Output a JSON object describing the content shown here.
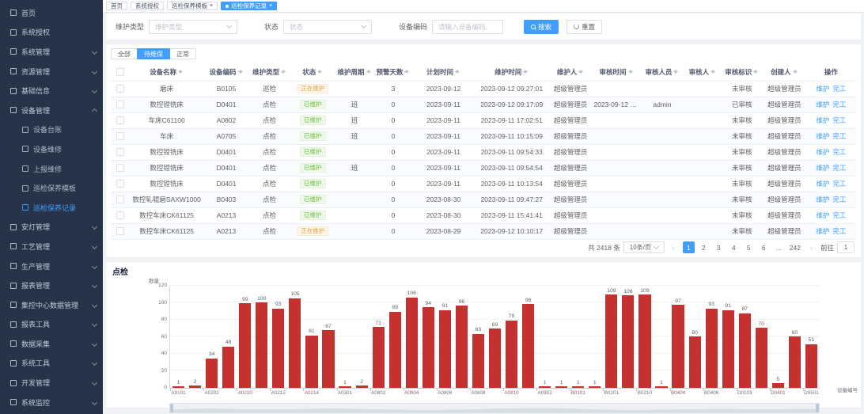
{
  "colors": {
    "accent": "#409eff",
    "bar_red": "#c4312e",
    "badge_working": "#e6a23c",
    "badge_done": "#67c23a",
    "sidebar_bg": "#273349"
  },
  "sidebar": {
    "items": [
      {
        "key": "home",
        "label": "首页",
        "icon": "home-icon"
      },
      {
        "key": "system-auth",
        "label": "系统授权",
        "icon": "authorization-icon"
      },
      {
        "key": "system-mgmt",
        "label": "系统管理",
        "icon": "system-settings-icon",
        "chevron": "down"
      },
      {
        "key": "resource-mgmt",
        "label": "资源管理",
        "icon": "resource-icon",
        "chevron": "down"
      },
      {
        "key": "base-info",
        "label": "基础信息",
        "icon": "base-info-icon",
        "chevron": "down"
      },
      {
        "key": "equipment-mgmt",
        "label": "设备管理",
        "icon": "equipment-icon",
        "chevron": "up"
      },
      {
        "key": "equipment-ledger",
        "label": "设备台账",
        "icon": "ledger-icon",
        "sub": true
      },
      {
        "key": "equipment-repair",
        "label": "设备维修",
        "icon": "repair-icon",
        "sub": true
      },
      {
        "key": "report-repair",
        "label": "上报维修",
        "icon": "report-repair-icon",
        "sub": true
      },
      {
        "key": "inspection-template",
        "label": "巡检保养模板",
        "icon": "template-icon",
        "sub": true
      },
      {
        "key": "inspection-record",
        "label": "巡检保养记录",
        "icon": "record-icon",
        "sub": true,
        "active": true
      },
      {
        "key": "andon-mgmt",
        "label": "安灯管理",
        "icon": "andon-icon",
        "chevron": "down"
      },
      {
        "key": "process-mgmt",
        "label": "工艺管理",
        "icon": "process-icon",
        "chevron": "down"
      },
      {
        "key": "production-mgmt",
        "label": "生产管理",
        "icon": "production-icon",
        "chevron": "down"
      },
      {
        "key": "report-mgmt",
        "label": "报表管理",
        "icon": "report-icon",
        "chevron": "down"
      },
      {
        "key": "central-data-mgmt",
        "label": "集控中心数据管理",
        "icon": "datacenter-icon",
        "chevron": "down"
      },
      {
        "key": "report-tool",
        "label": "报表工具",
        "icon": "report-tool-icon",
        "chevron": "down"
      },
      {
        "key": "data-collect",
        "label": "数据采集",
        "icon": "data-collect-icon",
        "chevron": "down"
      },
      {
        "key": "system-tool",
        "label": "系统工具",
        "icon": "system-tool-icon",
        "chevron": "down"
      },
      {
        "key": "dev-mgmt",
        "label": "开发管理",
        "icon": "dev-icon",
        "chevron": "down"
      },
      {
        "key": "system-monitor",
        "label": "系统监控",
        "icon": "monitor-icon",
        "chevron": "down"
      }
    ]
  },
  "tagbar": {
    "tabs": [
      {
        "key": "home",
        "label": "首页"
      },
      {
        "key": "system-auth",
        "label": "系统授权"
      },
      {
        "key": "inspection-template",
        "label": "巡检保养模板",
        "closable": true
      },
      {
        "key": "inspection-record",
        "label": "巡检保养记录",
        "closable": true,
        "active": true
      }
    ]
  },
  "filters": {
    "mtype_label": "维护类型",
    "mtype_placeholder": "维护类型",
    "status_label": "状态",
    "status_placeholder": "状态",
    "code_label": "设备编码",
    "code_placeholder": "请输入设备编码",
    "search_label": "搜索",
    "reset_label": "重置"
  },
  "view_tabs": [
    {
      "key": "all",
      "label": "全部"
    },
    {
      "key": "pending",
      "label": "待维保",
      "active": true
    },
    {
      "key": "normal",
      "label": "正常"
    }
  ],
  "table": {
    "columns": [
      {
        "label": "设备名称",
        "sortable": true
      },
      {
        "label": "设备编码",
        "sortable": true
      },
      {
        "label": "维护类型",
        "sortable": true
      },
      {
        "label": "状态",
        "sortable": true
      },
      {
        "label": "维护周期",
        "sortable": true
      },
      {
        "label": "预警天数",
        "sortable": true
      },
      {
        "label": "计划时间",
        "sortable": true
      },
      {
        "label": "维护时间",
        "sortable": true
      },
      {
        "label": "维护人",
        "sortable": true
      },
      {
        "label": "审核时间",
        "sortable": true
      },
      {
        "label": "审核人员",
        "sortable": true
      },
      {
        "label": "审核人",
        "sortable": true
      },
      {
        "label": "审核标识",
        "sortable": true
      },
      {
        "label": "创建人",
        "sortable": true
      },
      {
        "label": "操作",
        "sortable": false
      }
    ],
    "op_labels": [
      "维护",
      "完工"
    ],
    "rows": [
      {
        "name": "磨床",
        "code": "B0105",
        "mtype": "巡检",
        "status": "正在维护",
        "status_kind": "working",
        "cycle": "",
        "warn": "3",
        "plan": "2023-09-12",
        "mtime": "2023-09-12 09:27:01",
        "person": "超级管理员",
        "atime": "",
        "astaff": "",
        "aperson": "",
        "aflag": "未审核",
        "creator": "超级管理员"
      },
      {
        "name": "数控镗铣床",
        "code": "D0401",
        "mtype": "点检",
        "status": "已维护",
        "status_kind": "done",
        "cycle": "班",
        "warn": "0",
        "plan": "2023-09-11",
        "mtime": "2023-09-12 09:17:09",
        "person": "超级管理员",
        "atime": "2023-09-12 0...",
        "astaff": "admin",
        "aperson": "",
        "aflag": "已审核",
        "creator": "超级管理员"
      },
      {
        "name": "车床C61100",
        "code": "A0802",
        "mtype": "点检",
        "status": "已维护",
        "status_kind": "done",
        "cycle": "班",
        "warn": "0",
        "plan": "2023-09-11",
        "mtime": "2023-09-11 17:02:51",
        "person": "超级管理员",
        "atime": "",
        "astaff": "",
        "aperson": "",
        "aflag": "未审核",
        "creator": "超级管理员"
      },
      {
        "name": "车床",
        "code": "A0705",
        "mtype": "点检",
        "status": "已维护",
        "status_kind": "done",
        "cycle": "班",
        "warn": "0",
        "plan": "2023-09-11",
        "mtime": "2023-09-11 10:15:09",
        "person": "超级管理员",
        "atime": "",
        "astaff": "",
        "aperson": "",
        "aflag": "未审核",
        "creator": "超级管理员"
      },
      {
        "name": "数控镗铣床",
        "code": "D0401",
        "mtype": "点检",
        "status": "已维护",
        "status_kind": "done",
        "cycle": "",
        "warn": "0",
        "plan": "2023-09-11",
        "mtime": "2023-09-11 09:54:33",
        "person": "超级管理员",
        "atime": "",
        "astaff": "",
        "aperson": "",
        "aflag": "未审核",
        "creator": "超级管理员"
      },
      {
        "name": "数控镗铣床",
        "code": "D0401",
        "mtype": "点检",
        "status": "已维护",
        "status_kind": "done",
        "cycle": "班",
        "warn": "0",
        "plan": "2023-09-11",
        "mtime": "2023-09-11 09:54:54",
        "person": "超级管理员",
        "atime": "",
        "astaff": "",
        "aperson": "",
        "aflag": "未审核",
        "creator": "超级管理员"
      },
      {
        "name": "数控镗铣床",
        "code": "D0401",
        "mtype": "点检",
        "status": "已维护",
        "status_kind": "done",
        "cycle": "",
        "warn": "0",
        "plan": "2023-09-11",
        "mtime": "2023-09-11 10:13:54",
        "person": "超级管理员",
        "atime": "",
        "astaff": "",
        "aperson": "",
        "aflag": "未审核",
        "creator": "超级管理员"
      },
      {
        "name": "数控轧辊磨SAXW1000",
        "code": "B0403",
        "mtype": "点检",
        "status": "已维护",
        "status_kind": "done",
        "cycle": "",
        "warn": "0",
        "plan": "2023-08-30",
        "mtime": "2023-09-11 09:47:27",
        "person": "超级管理员",
        "atime": "",
        "astaff": "",
        "aperson": "",
        "aflag": "未审核",
        "creator": "超级管理员"
      },
      {
        "name": "数控车床CK61125",
        "code": "A0213",
        "mtype": "点检",
        "status": "已维护",
        "status_kind": "done",
        "cycle": "",
        "warn": "0",
        "plan": "2023-08-30",
        "mtime": "2023-09-11 15:41:41",
        "person": "超级管理员",
        "atime": "",
        "astaff": "",
        "aperson": "",
        "aflag": "未审核",
        "creator": "超级管理员"
      },
      {
        "name": "数控车床CK61125",
        "code": "A0213",
        "mtype": "点检",
        "status": "正在维护",
        "status_kind": "working",
        "cycle": "",
        "warn": "0",
        "plan": "2023-08-29",
        "mtime": "2023-09-12 10:10:17",
        "person": "超级管理员",
        "atime": "",
        "astaff": "",
        "aperson": "",
        "aflag": "未审核",
        "creator": "超级管理员"
      }
    ]
  },
  "pagination": {
    "total_label": "共 2418 条",
    "page_size": "10条/页",
    "pages": [
      "1",
      "2",
      "3",
      "4",
      "5",
      "6",
      "...",
      "242"
    ],
    "active_page": "1",
    "jump_label": "前往",
    "jump_value": "1"
  },
  "chart_data": {
    "type": "bar",
    "title": "点检",
    "ylabel": "数量",
    "xlabel": "设备编号",
    "ylim": [
      0,
      120
    ],
    "yticks": [
      0,
      20,
      40,
      60,
      80,
      100,
      120
    ],
    "grid": true,
    "color": "#c4312e",
    "categories": [
      "A0101",
      "",
      "A0202",
      "",
      "A0210",
      "",
      "A0212",
      "",
      "A0214",
      "",
      "A0301",
      "",
      "A0802",
      "",
      "A0804",
      "",
      "A0806",
      "",
      "A0808",
      "",
      "A0810",
      "",
      "A0902",
      "",
      "B0101",
      "",
      "B0201",
      "",
      "B0210",
      "",
      "B0404",
      "",
      "B0406",
      "",
      "D0103",
      "",
      "D0401",
      "",
      "D0501"
    ],
    "values": [
      1,
      2,
      34,
      48,
      99,
      100,
      93,
      105,
      61,
      67,
      1,
      2,
      71,
      89,
      106,
      94,
      91,
      96,
      63,
      69,
      79,
      98,
      1,
      1,
      1,
      1,
      109,
      108,
      109,
      1,
      97,
      60,
      93,
      91,
      87,
      70,
      5,
      60,
      51
    ]
  }
}
